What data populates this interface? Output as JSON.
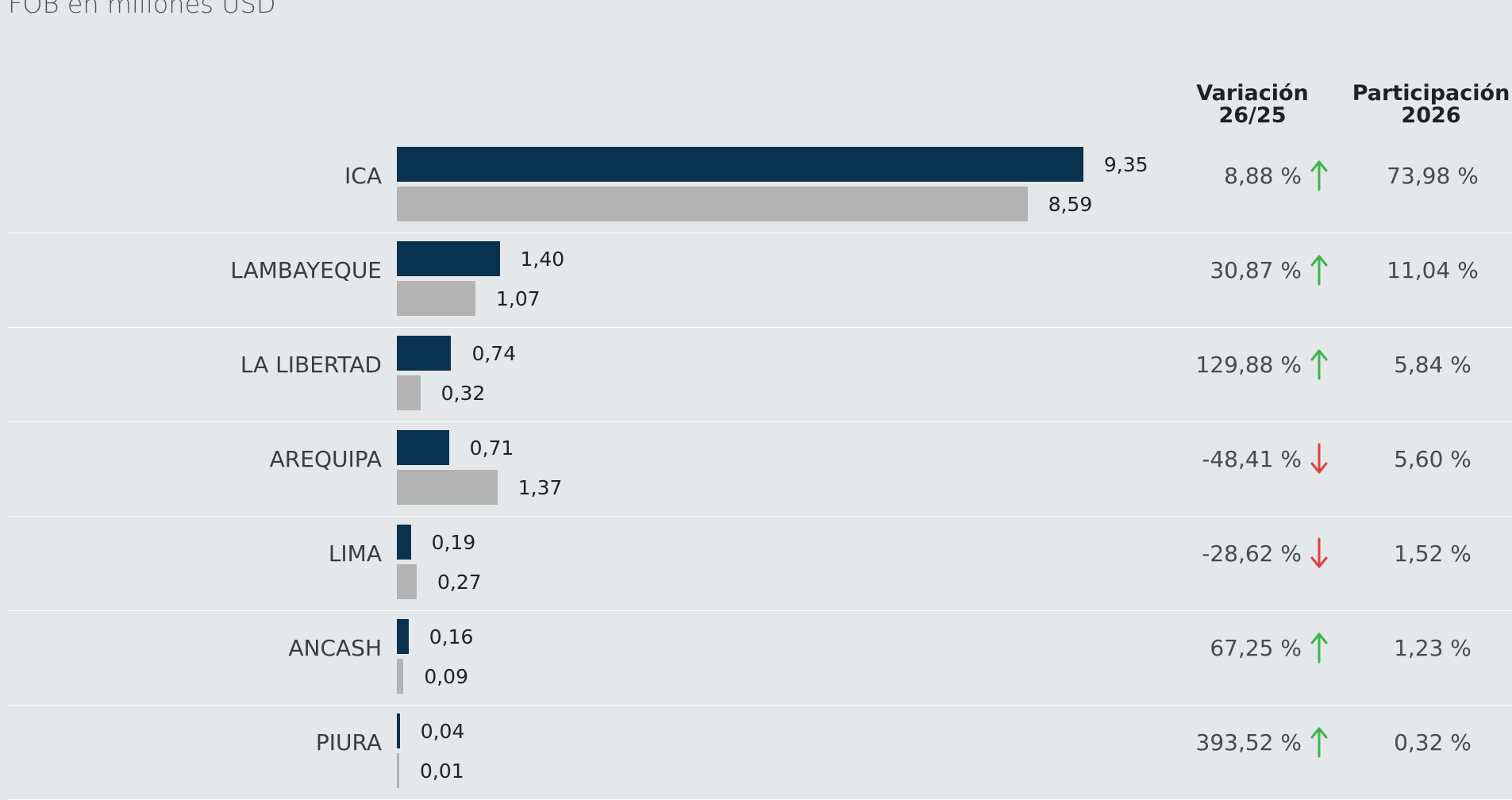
{
  "subtitle": "FOB en millones USD",
  "headers": {
    "variacion_l1": "Variación",
    "variacion_l2": "26/25",
    "participacion_l1": "Participación",
    "participacion_l2": "2026"
  },
  "colors": {
    "current": "#08324d",
    "previous": "#b3b3b3",
    "up": "#3cb44b",
    "down": "#e0403a"
  },
  "chart_data": {
    "type": "bar",
    "categories": [
      "ICA",
      "LAMBAYEQUE",
      "LA LIBERTAD",
      "AREQUIPA",
      "LIMA",
      "ANCASH",
      "PIURA"
    ],
    "series": [
      {
        "values": [
          9.35,
          1.4,
          0.74,
          0.71,
          0.19,
          0.16,
          0.04
        ]
      },
      {
        "values": [
          8.59,
          1.07,
          0.32,
          1.37,
          0.27,
          0.09,
          0.01
        ]
      }
    ],
    "title": "FOB en millones USD",
    "xlim": [
      0,
      10
    ]
  },
  "rows": [
    {
      "region": "ICA",
      "cur": "9,35",
      "prev": "8,59",
      "var": "8,88 %",
      "dir": "up",
      "part": "73,98 %"
    },
    {
      "region": "LAMBAYEQUE",
      "cur": "1,40",
      "prev": "1,07",
      "var": "30,87 %",
      "dir": "up",
      "part": "11,04 %"
    },
    {
      "region": "LA LIBERTAD",
      "cur": "0,74",
      "prev": "0,32",
      "var": "129,88 %",
      "dir": "up",
      "part": "5,84 %"
    },
    {
      "region": "AREQUIPA",
      "cur": "0,71",
      "prev": "1,37",
      "var": "-48,41 %",
      "dir": "down",
      "part": "5,60 %"
    },
    {
      "region": "LIMA",
      "cur": "0,19",
      "prev": "0,27",
      "var": "-28,62 %",
      "dir": "down",
      "part": "1,52 %"
    },
    {
      "region": "ANCASH",
      "cur": "0,16",
      "prev": "0,09",
      "var": "67,25 %",
      "dir": "up",
      "part": "1,23 %"
    },
    {
      "region": "PIURA",
      "cur": "0,04",
      "prev": "0,01",
      "var": "393,52 %",
      "dir": "up",
      "part": "0,32 %"
    }
  ]
}
